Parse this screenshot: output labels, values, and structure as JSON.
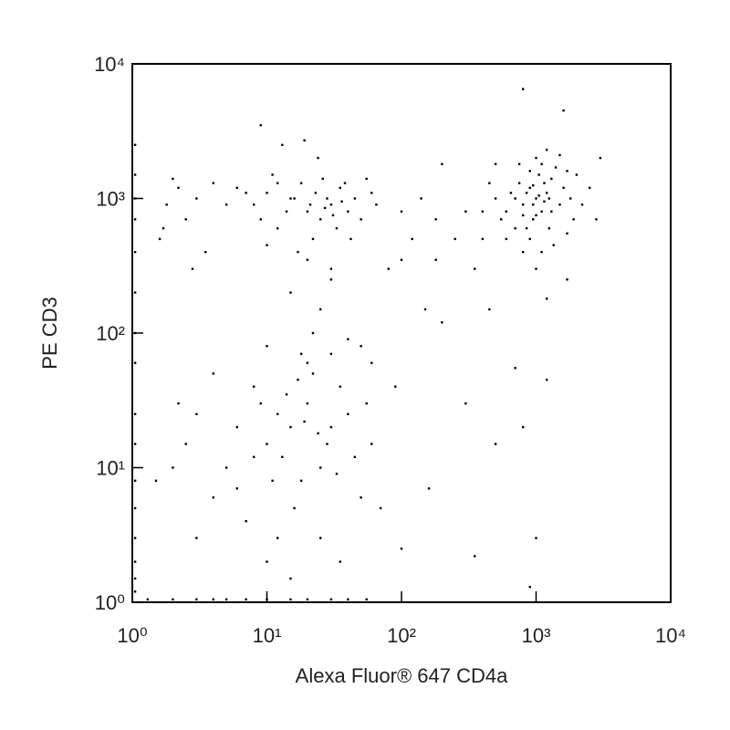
{
  "chart_data": {
    "type": "scatter",
    "xlabel": "Alexa Fluor® 647 CD4a",
    "ylabel": "PE CD3",
    "xscale": "log",
    "yscale": "log",
    "xlim": [
      1,
      10000
    ],
    "ylim": [
      1,
      10000
    ],
    "xticks": [
      {
        "value": 1,
        "label": "10⁰"
      },
      {
        "value": 10,
        "label": "10¹"
      },
      {
        "value": 100,
        "label": "10²"
      },
      {
        "value": 1000,
        "label": "10³"
      },
      {
        "value": 10000,
        "label": "10⁴"
      }
    ],
    "yticks": [
      {
        "value": 1,
        "label": "10⁰"
      },
      {
        "value": 10,
        "label": "10¹"
      },
      {
        "value": 100,
        "label": "10²"
      },
      {
        "value": 1000,
        "label": "10³"
      },
      {
        "value": 10000,
        "label": "10⁴"
      }
    ],
    "color": "#000000",
    "x": [
      1000,
      900,
      1100,
      800,
      1200,
      950,
      1300,
      700,
      1050,
      850,
      1500,
      600,
      1150,
      900,
      1400,
      750,
      1000,
      1250,
      650,
      1600,
      550,
      1800,
      1100,
      800,
      1350,
      1700,
      500,
      1000,
      2000,
      1200,
      700,
      900,
      1050,
      950,
      1150,
      850,
      1000,
      1300,
      600,
      2200,
      450,
      1900,
      750,
      1500,
      1100,
      400,
      1250,
      950,
      1700,
      800,
      3000,
      800,
      1600,
      1700,
      1200,
      350,
      300,
      250,
      200,
      180,
      400,
      500,
      2500,
      2800,
      20,
      15,
      25,
      30,
      10,
      12,
      35,
      40,
      18,
      22,
      8,
      28,
      45,
      50,
      6,
      14,
      33,
      17,
      26,
      38,
      9,
      55,
      5,
      4,
      3,
      2.5,
      2,
      1.8,
      1.6,
      2.2,
      3.5,
      7,
      11,
      24,
      30,
      20,
      13,
      9,
      19,
      60,
      42,
      16,
      21,
      27,
      12,
      36,
      65,
      2.8,
      1.7,
      23,
      31,
      10,
      15,
      22,
      10,
      25,
      30,
      40,
      18,
      50,
      60,
      80,
      100,
      120,
      150,
      200,
      90,
      140,
      180,
      100,
      450,
      15,
      10,
      20,
      25,
      12,
      8,
      30,
      18,
      35,
      22,
      14,
      6,
      40,
      28,
      16,
      9,
      11,
      45,
      5,
      4,
      3,
      2.5,
      2,
      3,
      7,
      12,
      25,
      35,
      50,
      20,
      30,
      17,
      13,
      24,
      33,
      19,
      8,
      6,
      4,
      10,
      15,
      60,
      55,
      70,
      1.5,
      2.2,
      1.05,
      1.05,
      1.05,
      1.05,
      1.05,
      1.05,
      1.05,
      1.05,
      1.05,
      1.05,
      1.05,
      1.05,
      1.05,
      1.05,
      1.05,
      1.05,
      1.3,
      2,
      3,
      4,
      5,
      7,
      10,
      15,
      20,
      30,
      40,
      55,
      1000,
      800,
      500,
      900,
      350,
      100,
      160,
      300,
      1200,
      700
    ],
    "values": [
      1000,
      1200,
      800,
      900,
      1100,
      700,
      1400,
      1000,
      1500,
      600,
      900,
      800,
      1300,
      500,
      1700,
      1300,
      2000,
      600,
      1100,
      1200,
      700,
      1000,
      1800,
      400,
      450,
      1600,
      1000,
      300,
      1500,
      2300,
      600,
      1600,
      1050,
      900,
      950,
      1100,
      750,
      800,
      500,
      900,
      1300,
      700,
      1800,
      2100,
      400,
      800,
      1000,
      1250,
      550,
      750,
      2000,
      6500,
      4500,
      250,
      180,
      300,
      800,
      500,
      1800,
      350,
      500,
      1800,
      1200,
      700,
      800,
      1000,
      700,
      900,
      1100,
      600,
      1200,
      800,
      1300,
      500,
      900,
      1000,
      1000,
      700,
      1200,
      800,
      600,
      400,
      1400,
      1300,
      700,
      1400,
      900,
      1300,
      1000,
      700,
      1400,
      900,
      500,
      1200,
      400,
      1100,
      1500,
      2000,
      300,
      350,
      2500,
      3500,
      2700,
      1100,
      500,
      1000,
      900,
      850,
      1300,
      950,
      900,
      300,
      600,
      1100,
      750,
      450,
      200,
      100,
      80,
      150,
      250,
      90,
      70,
      80,
      60,
      300,
      350,
      500,
      150,
      120,
      40,
      1000,
      700,
      800,
      150,
      20,
      15,
      30,
      10,
      25,
      12,
      20,
      8,
      40,
      50,
      35,
      20,
      25,
      15,
      5,
      30,
      8,
      12,
      10,
      6,
      25,
      15,
      10,
      3,
      4,
      3,
      3,
      2,
      6,
      60,
      70,
      45,
      12,
      18,
      9,
      22,
      40,
      7,
      50,
      2,
      1.5,
      15,
      30,
      5,
      8,
      30,
      1.2,
      1.5,
      2,
      3,
      5,
      8,
      15,
      25,
      60,
      100,
      200,
      400,
      700,
      1000,
      1500,
      2500,
      1.05,
      1.05,
      1.05,
      1.05,
      1.05,
      1.05,
      1.05,
      1.05,
      1.05,
      1.05,
      1.05,
      1.05,
      3,
      20,
      15,
      1.3,
      2.2,
      2.5,
      7,
      30,
      45,
      55
    ]
  }
}
